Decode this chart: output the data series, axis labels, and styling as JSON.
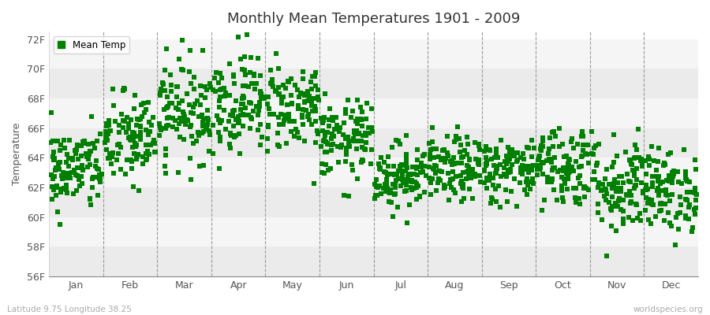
{
  "title": "Monthly Mean Temperatures 1901 - 2009",
  "ylabel": "Temperature",
  "dot_color": "#008000",
  "background_color": "#ffffff",
  "plot_bg_color": "#ffffff",
  "marker": "s",
  "marker_size": 4,
  "ylim": [
    56,
    72.5
  ],
  "yticks": [
    56,
    58,
    60,
    62,
    64,
    66,
    68,
    70,
    72
  ],
  "ytick_labels": [
    "56F",
    "58F",
    "60F",
    "62F",
    "64F",
    "66F",
    "68F",
    "70F",
    "72F"
  ],
  "months": [
    "Jan",
    "Feb",
    "Mar",
    "Apr",
    "May",
    "Jun",
    "Jul",
    "Aug",
    "Sep",
    "Oct",
    "Nov",
    "Dec"
  ],
  "legend_label": "Mean Temp",
  "footer_left": "Latitude 9.75 Longitude 38.25",
  "footer_right": "worldspecies.org",
  "num_years": 109,
  "seed": 42,
  "monthly_means": [
    63.2,
    65.2,
    67.2,
    67.8,
    67.5,
    65.2,
    62.8,
    63.2,
    63.2,
    63.5,
    62.2,
    61.8
  ],
  "monthly_stds": [
    1.4,
    1.6,
    1.7,
    1.7,
    1.5,
    1.3,
    1.1,
    1.1,
    1.1,
    1.4,
    1.7,
    1.4
  ],
  "band_colors": [
    "#ebebeb",
    "#f5f5f5"
  ],
  "dashed_line_color": "#999999"
}
